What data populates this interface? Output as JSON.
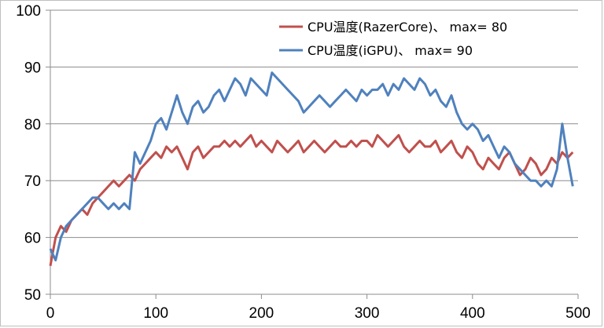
{
  "chart_data": {
    "type": "line",
    "title": "",
    "xlabel": "",
    "ylabel": "",
    "xlim": [
      0,
      500
    ],
    "ylim": [
      50,
      100
    ],
    "x_ticks": [
      0,
      100,
      200,
      300,
      400,
      500
    ],
    "y_ticks": [
      50,
      60,
      70,
      80,
      90,
      100
    ],
    "grid": "horizontal",
    "legend": "top-right",
    "x": [
      0,
      5,
      10,
      15,
      20,
      25,
      30,
      35,
      40,
      45,
      50,
      55,
      60,
      65,
      70,
      75,
      80,
      85,
      90,
      95,
      100,
      105,
      110,
      115,
      120,
      125,
      130,
      135,
      140,
      145,
      150,
      155,
      160,
      165,
      170,
      175,
      180,
      185,
      190,
      195,
      200,
      205,
      210,
      215,
      220,
      225,
      230,
      235,
      240,
      245,
      250,
      255,
      260,
      265,
      270,
      275,
      280,
      285,
      290,
      295,
      300,
      305,
      310,
      315,
      320,
      325,
      330,
      335,
      340,
      345,
      350,
      355,
      360,
      365,
      370,
      375,
      380,
      385,
      390,
      395,
      400,
      405,
      410,
      415,
      420,
      425,
      430,
      435,
      440,
      445,
      450,
      455,
      460,
      465,
      470,
      475,
      480,
      485,
      490,
      495
    ],
    "series": [
      {
        "name": "CPU温度(RazerCore)、 max=  80",
        "color": "#c0504d",
        "values": [
          55,
          60,
          62,
          61,
          63,
          64,
          65,
          64,
          66,
          67,
          68,
          69,
          70,
          69,
          70,
          71,
          70,
          72,
          73,
          74,
          75,
          74,
          76,
          75,
          76,
          74,
          72,
          75,
          76,
          74,
          75,
          76,
          76,
          77,
          76,
          77,
          76,
          77,
          78,
          76,
          77,
          76,
          75,
          77,
          76,
          75,
          76,
          77,
          75,
          76,
          77,
          76,
          75,
          76,
          77,
          76,
          76,
          77,
          76,
          77,
          77,
          76,
          78,
          77,
          76,
          77,
          78,
          76,
          75,
          76,
          77,
          76,
          76,
          77,
          75,
          76,
          77,
          75,
          74,
          76,
          75,
          73,
          72,
          74,
          73,
          72,
          74,
          75,
          73,
          71,
          72,
          74,
          73,
          71,
          72,
          74,
          73,
          75,
          74,
          75
        ]
      },
      {
        "name": "CPU温度(iGPU)、 max=  90",
        "color": "#4f81bd",
        "values": [
          58,
          56,
          60,
          62,
          63,
          64,
          65,
          66,
          67,
          67,
          66,
          65,
          66,
          65,
          66,
          65,
          75,
          73,
          75,
          77,
          80,
          81,
          79,
          82,
          85,
          82,
          80,
          83,
          84,
          82,
          83,
          85,
          86,
          84,
          86,
          88,
          87,
          85,
          88,
          87,
          86,
          85,
          89,
          88,
          87,
          86,
          85,
          84,
          82,
          83,
          84,
          85,
          84,
          83,
          84,
          85,
          86,
          85,
          84,
          86,
          85,
          86,
          86,
          87,
          85,
          87,
          86,
          88,
          87,
          86,
          88,
          87,
          85,
          86,
          84,
          83,
          85,
          82,
          80,
          79,
          80,
          79,
          77,
          78,
          76,
          74,
          76,
          75,
          73,
          72,
          71,
          70,
          70,
          69,
          70,
          69,
          72,
          80,
          74,
          69
        ]
      }
    ]
  }
}
